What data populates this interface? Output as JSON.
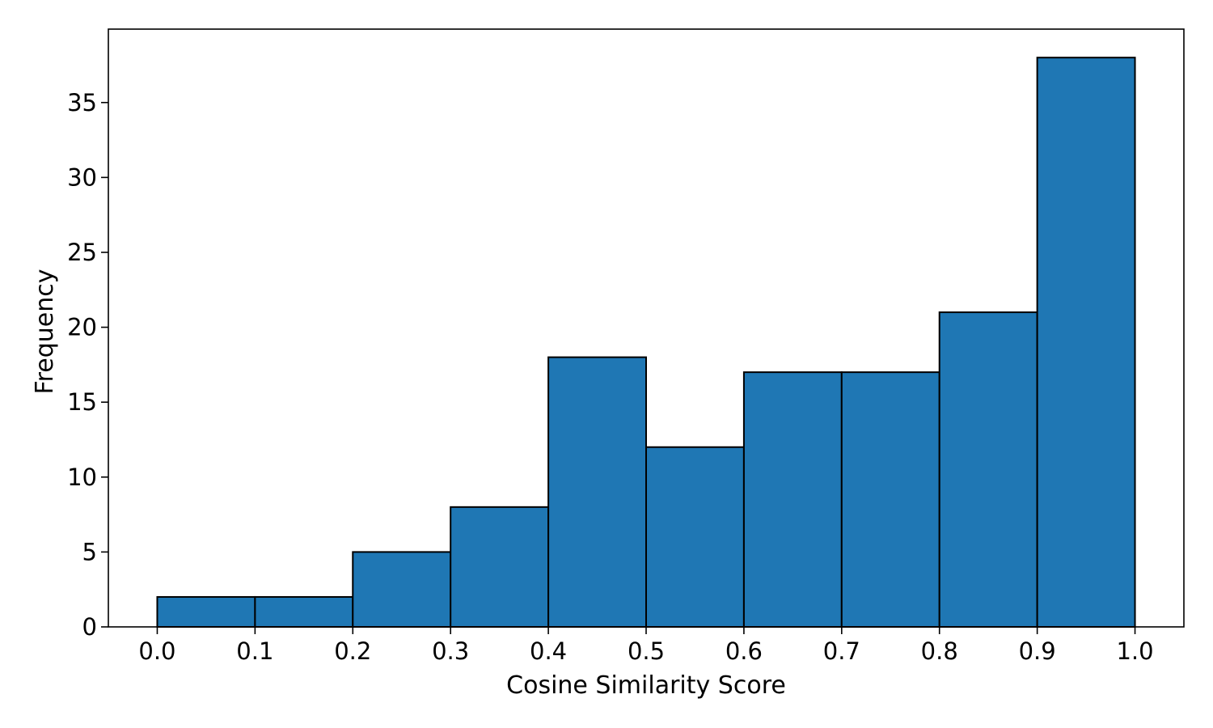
{
  "chart_data": {
    "type": "bar",
    "title": "",
    "xlabel": "Cosine Similarity Score",
    "ylabel": "Frequency",
    "bin_edges": [
      0.0,
      0.1,
      0.2,
      0.3,
      0.4,
      0.5,
      0.6,
      0.7,
      0.8,
      0.9,
      1.0
    ],
    "values": [
      2,
      2,
      5,
      8,
      18,
      12,
      17,
      17,
      21,
      38
    ],
    "xlim": [
      -0.05,
      1.05
    ],
    "ylim": [
      0,
      39.9
    ],
    "x_ticks": [
      0.0,
      0.1,
      0.2,
      0.3,
      0.4,
      0.5,
      0.6,
      0.7,
      0.8,
      0.9,
      1.0
    ],
    "x_tick_labels": [
      "0.0",
      "0.1",
      "0.2",
      "0.3",
      "0.4",
      "0.5",
      "0.6",
      "0.7",
      "0.8",
      "0.9",
      "1.0"
    ],
    "y_ticks": [
      0,
      5,
      10,
      15,
      20,
      25,
      30,
      35
    ],
    "y_tick_labels": [
      "0",
      "5",
      "10",
      "15",
      "20",
      "25",
      "30",
      "35"
    ],
    "grid": false,
    "bar_color": "#1f77b4",
    "edge_color": "#000000"
  }
}
